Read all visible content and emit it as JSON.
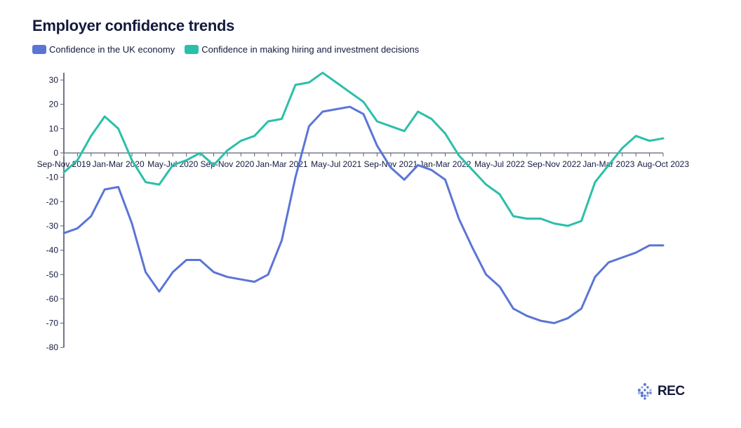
{
  "colors": {
    "series_economy": "#5b75d6",
    "series_hiring": "#2bbfa9",
    "axis": "#141a3c",
    "tick": "#5a6078",
    "logo_accent": "#5b75d6"
  },
  "logo": {
    "text": "REC",
    "icon": "diamond-dots-icon"
  },
  "chart_data": {
    "type": "line",
    "title": "Employer confidence trends",
    "xlabel": "",
    "ylabel": "",
    "ylim": [
      -80,
      33
    ],
    "yticks": [
      30,
      20,
      10,
      0,
      -10,
      -20,
      -30,
      -40,
      -50,
      -60,
      -70,
      -80
    ],
    "grid": false,
    "legend_position": "top-left",
    "x_tick_labels": [
      {
        "index": 0,
        "label": "Sep-Nov 2019"
      },
      {
        "index": 4,
        "label": "Jan-Mar 2020"
      },
      {
        "index": 8,
        "label": "May-Jul 2020"
      },
      {
        "index": 12,
        "label": "Sep-Nov 2020"
      },
      {
        "index": 16,
        "label": "Jan-Mar 2021"
      },
      {
        "index": 20,
        "label": "May-Jul 2021"
      },
      {
        "index": 24,
        "label": "Sep-Nov 2021"
      },
      {
        "index": 28,
        "label": "Jan-Mar 2022"
      },
      {
        "index": 32,
        "label": "May-Jul 2022"
      },
      {
        "index": 36,
        "label": "Sep-Nov 2022"
      },
      {
        "index": 40,
        "label": "Jan-Mar 2023"
      },
      {
        "index": 44,
        "label": "Aug-Oct 2023"
      }
    ],
    "point_count": 45,
    "series": [
      {
        "name": "Confidence in the UK economy",
        "color_key": "series_economy",
        "values": [
          -33,
          -31,
          -26,
          -15,
          -14,
          -29,
          -49,
          -57,
          -49,
          -44,
          -44,
          -49,
          -51,
          -52,
          -53,
          -50,
          -36,
          -10,
          11,
          17,
          18,
          19,
          16,
          3,
          -6,
          -11,
          -5,
          -7,
          -11,
          -27,
          -39,
          -50,
          -55,
          -64,
          -67,
          -69,
          -70,
          -68,
          -64,
          -51,
          -45,
          -43,
          -41,
          -38,
          -38
        ]
      },
      {
        "name": "Confidence in making hiring and investment decisions",
        "color_key": "series_hiring",
        "values": [
          -8,
          -3,
          7,
          15,
          10,
          -3,
          -12,
          -13,
          -5,
          -3,
          0,
          -5,
          1,
          5,
          7,
          13,
          14,
          28,
          29,
          33,
          29,
          25,
          21,
          13,
          11,
          9,
          17,
          14,
          8,
          -1,
          -7,
          -13,
          -17,
          -26,
          -27,
          -27,
          -29,
          -30,
          -28,
          -12,
          -5,
          2,
          7,
          5,
          6
        ]
      }
    ]
  }
}
